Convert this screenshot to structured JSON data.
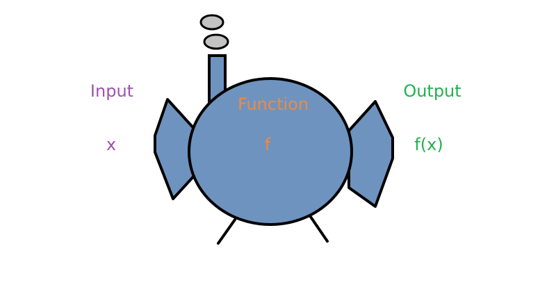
{
  "labels": {
    "input_title": "Input",
    "input_var": "x",
    "function_title": "Function",
    "function_var": "f",
    "output_title": "Output",
    "output_var": "f(x)"
  },
  "colors": {
    "machine_fill": "#6f93bf",
    "outline": "#000000",
    "smoke_fill": "#c3c3c3",
    "input_text": "#a24fb4",
    "function_text": "#f08a3a",
    "output_text": "#22b14c"
  }
}
